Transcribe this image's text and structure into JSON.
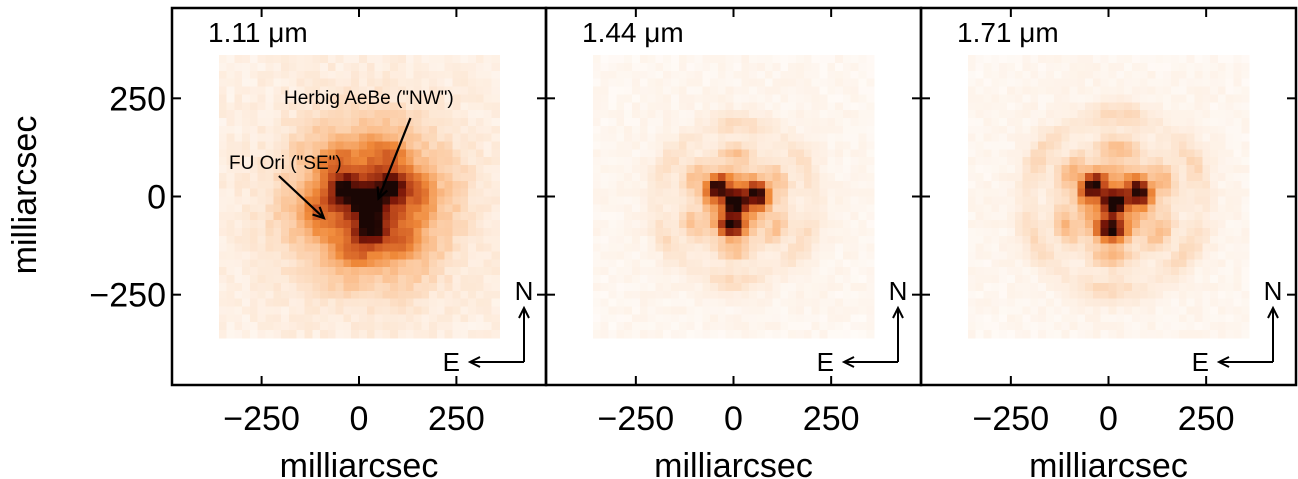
{
  "chart_data": {
    "type": "heatmap",
    "ylabel": "milliarcsec",
    "xlabel": "milliarcsec",
    "xticks": [
      -250,
      0,
      250
    ],
    "yticks": [
      250,
      0,
      -250
    ],
    "xtick_labels": [
      "−250",
      "0",
      "250"
    ],
    "ytick_labels": [
      "250",
      "0",
      "−250"
    ],
    "xlim": [
      -480,
      480
    ],
    "ylim": [
      -480,
      480
    ],
    "colormap": [
      "#ffffff",
      "#fde6d2",
      "#fbbf8e",
      "#f08a3a",
      "#c8501e",
      "#7a1608",
      "#1a0604"
    ],
    "compass": {
      "north": "N",
      "east": "E"
    },
    "panels": [
      {
        "wavelength": "1.11 ",
        "unit": "μm",
        "annotations": [
          {
            "text": "Herbig AeBe (\"NW\")",
            "target": [
              50,
              -5
            ]
          },
          {
            "text": "FU Ori (\"SE\")",
            "target": [
              -90,
              -55
            ]
          }
        ]
      },
      {
        "wavelength": "1.44 ",
        "unit": "μm",
        "annotations": []
      },
      {
        "wavelength": "1.71 ",
        "unit": "μm",
        "annotations": []
      }
    ]
  }
}
